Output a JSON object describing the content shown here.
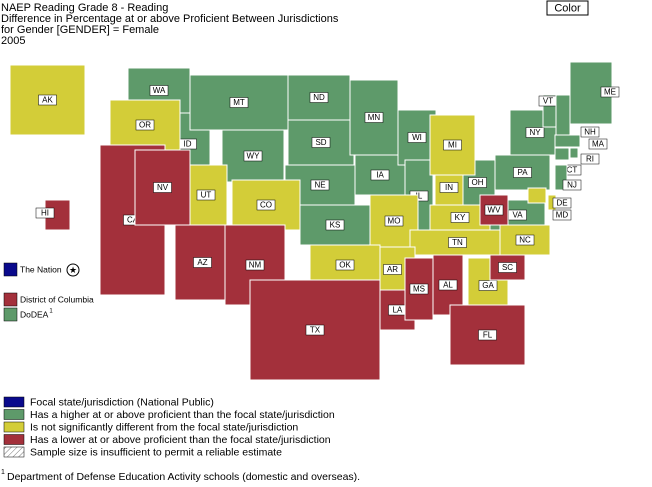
{
  "header": {
    "lines": [
      "NAEP Reading Grade 8 - Reading",
      "Difference in Percentage at or above Proficient Between Jurisdictions",
      "for Gender [GENDER] = Female",
      "2005"
    ]
  },
  "button": "Color",
  "side_legend": [
    {
      "label": "The Nation",
      "color": "#0a0a8c"
    },
    {
      "label": "District of Columbia",
      "color": "#a3303b"
    },
    {
      "label": "DoDEA",
      "superscript": "1",
      "color": "#5e9a6a"
    }
  ],
  "legend": {
    "items": [
      {
        "label": "Focal state/jurisdiction (National Public)",
        "color": "#0a0a8c",
        "states": []
      },
      {
        "label": "Has a higher at or above proficient than the focal state/jurisdiction",
        "color": "#5e9a6a",
        "states": [
          "WA",
          "ID",
          "MT",
          "WY",
          "ND",
          "SD",
          "NE",
          "KS",
          "MN",
          "IA",
          "WI",
          "IL",
          "OH",
          "PA",
          "NY",
          "VT",
          "NH",
          "ME",
          "MA",
          "CT",
          "RI",
          "NJ",
          "VA"
        ]
      },
      {
        "label": "Is not significantly different from the focal state/jurisdiction",
        "color": "#d3cd38",
        "states": [
          "AK",
          "OR",
          "UT",
          "CO",
          "MO",
          "IN",
          "MI",
          "KY",
          "TN",
          "AR",
          "OK",
          "GA",
          "NC",
          "DE",
          "MD"
        ]
      },
      {
        "label": "Has a lower at or above proficient than the focal state/jurisdiction",
        "color": "#a3303b",
        "states": [
          "CA",
          "NV",
          "AZ",
          "NM",
          "TX",
          "LA",
          "MS",
          "AL",
          "FL",
          "SC",
          "WV",
          "HI"
        ]
      },
      {
        "label": "Sample size is insufficient to permit a reliable estimate",
        "pattern": "hatch",
        "states": []
      }
    ]
  },
  "footnote": {
    "marker": "1",
    "text": "Department of Defense Education Activity schools (domestic and overseas)."
  }
}
